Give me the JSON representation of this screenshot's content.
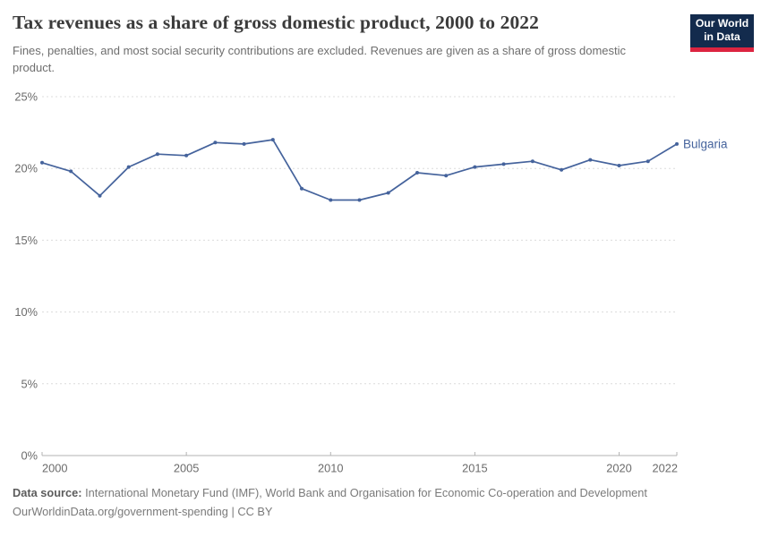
{
  "header": {
    "title": "Tax revenues as a share of gross domestic product, 2000 to 2022",
    "subtitle": "Fines, penalties, and most social security contributions are excluded. Revenues are given as a share of gross domestic product.",
    "logo": {
      "line1": "Our World",
      "line2": "in Data"
    }
  },
  "chart_data": {
    "type": "line",
    "title": "Tax revenues as a share of gross domestic product, 2000 to 2022",
    "x": [
      2000,
      2001,
      2002,
      2003,
      2004,
      2005,
      2006,
      2007,
      2008,
      2009,
      2010,
      2011,
      2012,
      2013,
      2014,
      2015,
      2016,
      2017,
      2018,
      2019,
      2020,
      2021,
      2022
    ],
    "series": [
      {
        "name": "Bulgaria",
        "color": "#45639c",
        "values": [
          20.4,
          19.8,
          18.1,
          20.1,
          21.0,
          20.9,
          21.8,
          21.7,
          22.0,
          18.6,
          17.8,
          17.8,
          18.3,
          19.7,
          19.5,
          20.1,
          20.3,
          20.5,
          19.9,
          20.6,
          20.2,
          20.5,
          21.7
        ]
      }
    ],
    "unit": "%",
    "ylim": [
      0,
      25
    ],
    "yticks": [
      {
        "value": 0,
        "label": "0%"
      },
      {
        "value": 5,
        "label": "5%"
      },
      {
        "value": 10,
        "label": "10%"
      },
      {
        "value": 15,
        "label": "15%"
      },
      {
        "value": 20,
        "label": "20%"
      },
      {
        "value": 25,
        "label": "25%"
      }
    ],
    "xticks": [
      2000,
      2005,
      2010,
      2015,
      2020,
      2022
    ],
    "grid": "horizontal-dashed",
    "legend_position": "end-of-line"
  },
  "footer": {
    "datasource_label": "Data source:",
    "datasource_text": " International Monetary Fund (IMF), World Bank and Organisation for Economic Co-operation and Development",
    "link_line": "OurWorldinData.org/government-spending | CC BY"
  },
  "colors": {
    "line": "#45639c",
    "grid": "#dcdcdc",
    "axis": "#b3b3b3",
    "tick_text": "#6b6b6b",
    "logo_bg": "#132b4d",
    "logo_accent": "#dc2440"
  }
}
